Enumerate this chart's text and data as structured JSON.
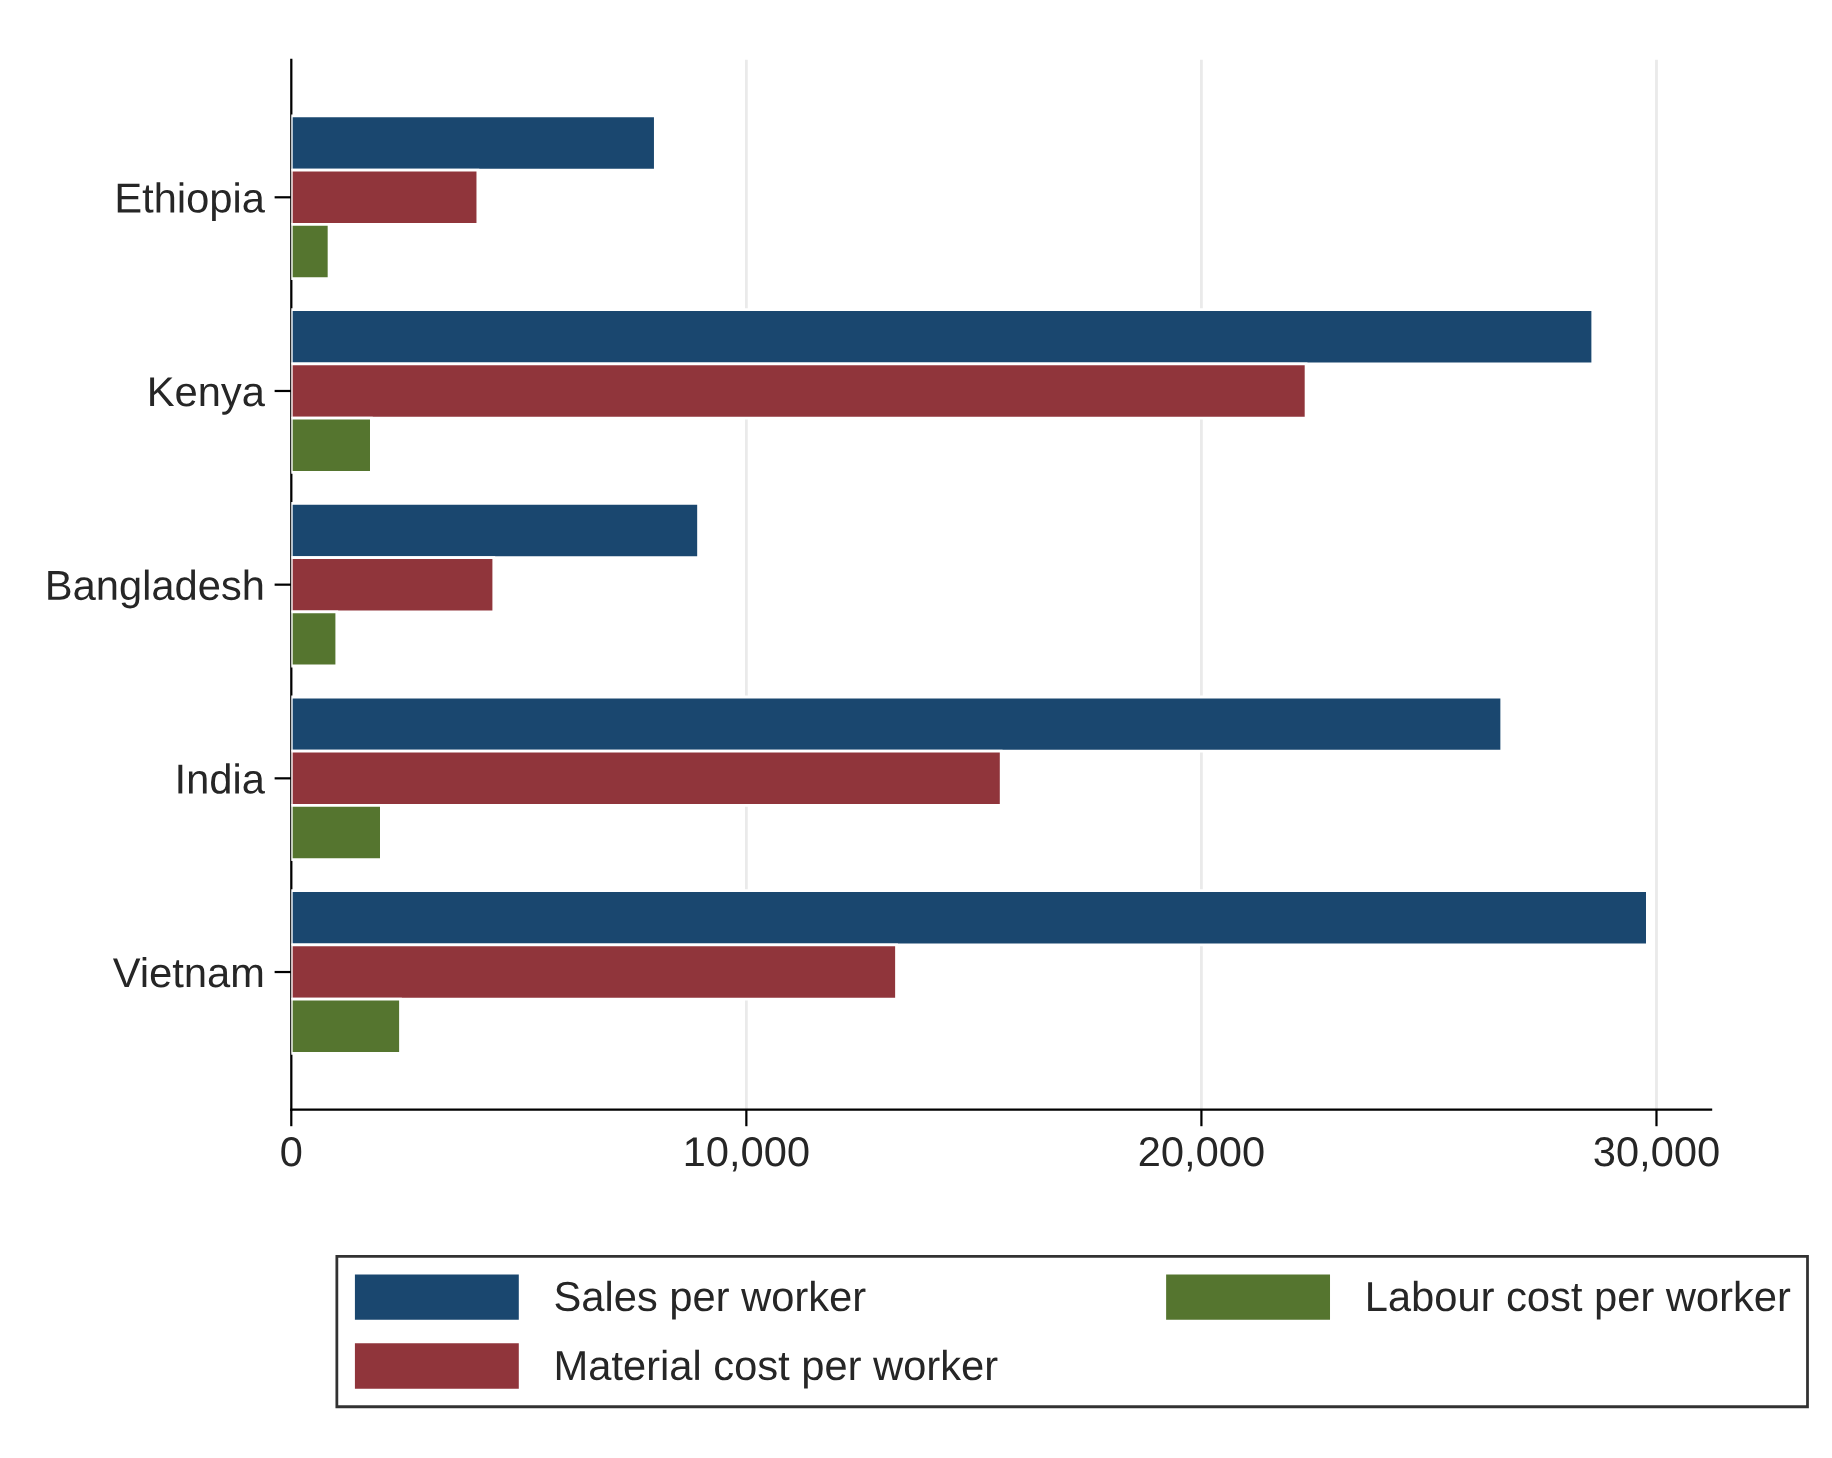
{
  "chart_data": {
    "type": "bar",
    "orientation": "horizontal",
    "categories": [
      "Ethiopia",
      "Kenya",
      "Bangladesh",
      "India",
      "Vietnam"
    ],
    "series": [
      {
        "name": "Sales per worker",
        "color": "#1a476f",
        "values": [
          8000,
          28600,
          8950,
          26600,
          29800
        ]
      },
      {
        "name": "Material cost per worker",
        "color": "#90353b",
        "values": [
          4100,
          22300,
          4450,
          15600,
          13300
        ]
      },
      {
        "name": "Labour cost per worker",
        "color": "#55752f",
        "values": [
          830,
          1760,
          1000,
          1980,
          2400
        ]
      }
    ],
    "xlim": [
      0,
      31200
    ],
    "xticks": [
      0,
      {
        "value": 10000,
        "label": "10,000"
      },
      {
        "value": 20000,
        "label": "20,000"
      },
      {
        "value": 30000,
        "label": "30,000"
      }
    ],
    "grid": "x",
    "legend": "bottom"
  }
}
